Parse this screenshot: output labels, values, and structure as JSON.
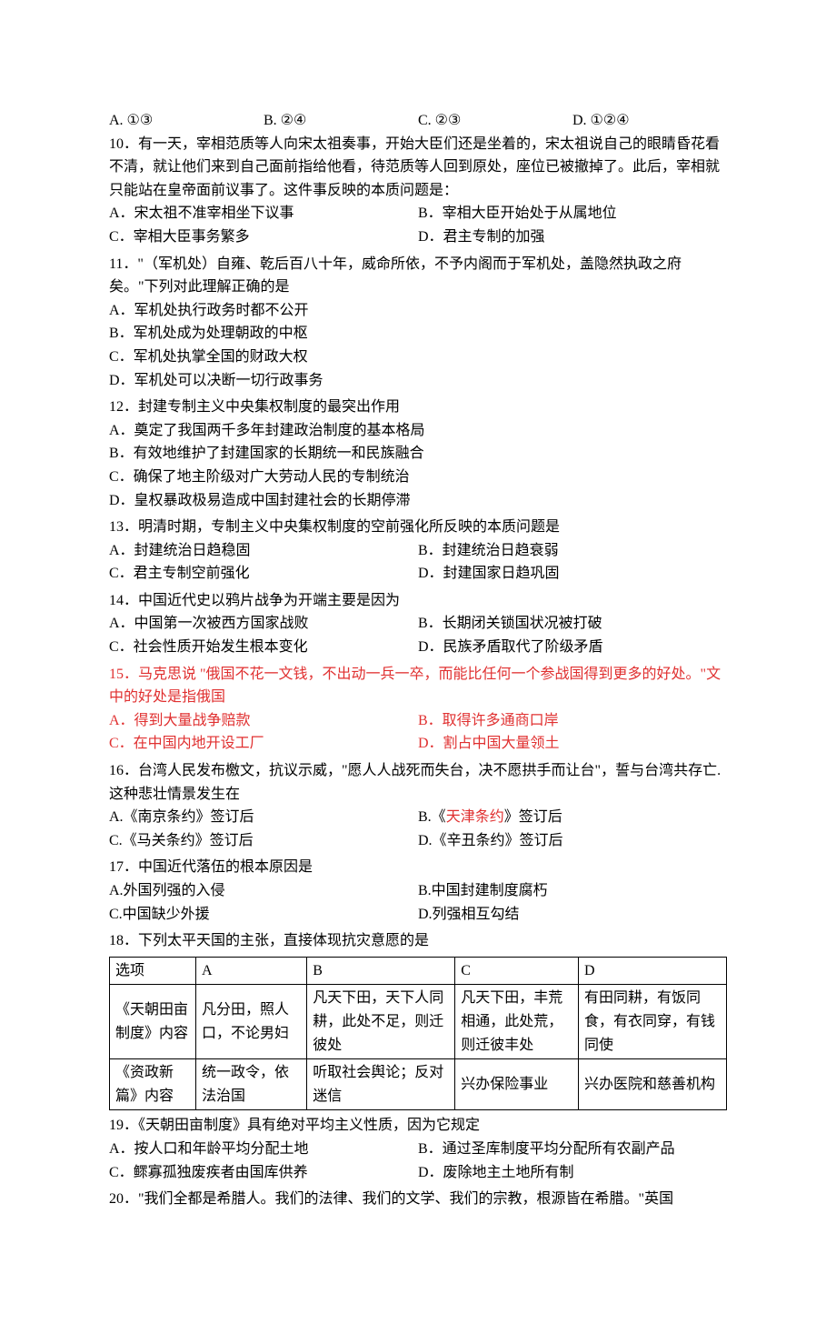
{
  "q_prev_options": {
    "a": "A. ①③",
    "b": "B. ②④",
    "c": "C. ②③",
    "d": "D. ①②④"
  },
  "q10": {
    "text": "10．有一天，宰相范质等人向宋太祖奏事，开始大臣们还是坐着的，宋太祖说自己的眼睛昏花看不清，就让他们来到自己面前指给他看，待范质等人回到原处，座位已被撤掉了。此后，宰相就只能站在皇帝面前议事了。这件事反映的本质问题是：",
    "a": "A．宋太祖不准宰相坐下议事",
    "b": "B．宰相大臣开始处于从属地位",
    "c": "C．宰相大臣事务繁多",
    "d": "D．君主专制的加强"
  },
  "q11": {
    "text": "11．\"（军机处）自雍、乾后百八十年，威命所依，不予内阁而于军机处，盖隐然执政之府矣。\"下列对此理解正确的是",
    "a": "A．军机处执行政务时都不公开",
    "b": "B．军机处成为处理朝政的中枢",
    "c": "C．军机处执掌全国的财政大权",
    "d": "D．军机处可以决断一切行政事务"
  },
  "q12": {
    "text": "12．封建专制主义中央集权制度的最突出作用",
    "a": "A．奠定了我国两千多年封建政治制度的基本格局",
    "b": "B．有效地维护了封建国家的长期统一和民族融合",
    "c": "C．确保了地主阶级对广大劳动人民的专制统治",
    "d": "D．皇权暴政极易造成中国封建社会的长期停滞"
  },
  "q13": {
    "text": "13．明清时期，专制主义中央集权制度的空前强化所反映的本质问题是",
    "a": "A．封建统治日趋稳固",
    "b": "B．封建统治日趋衰弱",
    "c": "C．君主专制空前强化",
    "d": "D．封建国家日趋巩固"
  },
  "q14": {
    "text": "14．中国近代史以鸦片战争为开端主要是因为",
    "a": "A．中国第一次被西方国家战败",
    "b": "B．长期闭关锁国状况被打破",
    "c": "C．社会性质开始发生根本变化",
    "d": "D．民族矛盾取代了阶级矛盾"
  },
  "q15": {
    "text": "15．马克思说 \"俄国不花一文钱，不出动一兵一卒，而能比任何一个参战国得到更多的好处。\"文中的好处是指俄国",
    "a": "A．得到大量战争赔款",
    "b": "B．取得许多通商口岸",
    "c": "C．在中国内地开设工厂",
    "d": "D．割占中国大量领土"
  },
  "q16": {
    "text": "16．台湾人民发布檄文，抗议示威，\"愿人人战死而失台，决不愿拱手而让台\"，誓与台湾共存亡.这种悲壮情景发生在",
    "a": "A.《南京条约》签订后",
    "b_pre": "B.《",
    "b_red": "天津条约",
    "b_post": "》签订后",
    "c": "C.《马关条约》签订后",
    "d": "D.《辛丑条约》签订后"
  },
  "q17": {
    "text": "17．中国近代落伍的根本原因是",
    "a": "A.外国列强的入侵",
    "b": "B.中国封建制度腐朽",
    "c": "C.中国缺少外援",
    "d": "D.列强相互勾结"
  },
  "q18": {
    "text": "18．下列太平天国的主张，直接体现抗灾意愿的是",
    "table": {
      "headers": [
        "选项",
        "A",
        "B",
        "C",
        "D"
      ],
      "rows": [
        [
          "《天朝田亩制度》内容",
          "凡分田，照人口，不论男妇",
          "凡天下田，天下人同耕，此处不足，则迁彼处",
          "凡天下田，丰荒相通，此处荒，则迁彼丰处",
          "有田同耕，有饭同食，有衣同穿，有钱同使"
        ],
        [
          "《资政新篇》内容",
          "统一政令，依法治国",
          "听取社会舆论；反对迷信",
          "兴办保险事业",
          "兴办医院和慈善机构"
        ]
      ]
    }
  },
  "q19": {
    "text": "19．《天朝田亩制度》具有绝对平均主义性质，因为它规定",
    "a": "A．按人口和年龄平均分配土地",
    "b": "B．通过圣库制度平均分配所有农副产品",
    "c": "C．鳏寡孤独废疾者由国库供养",
    "d": "D．废除地主土地所有制"
  },
  "q20": {
    "text": "20．\"我们全都是希腊人。我们的法律、我们的文学、我们的宗教，根源皆在希腊。\"英国"
  }
}
